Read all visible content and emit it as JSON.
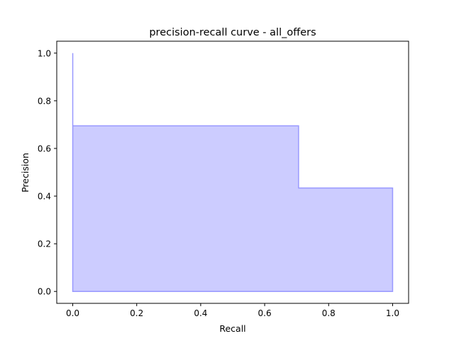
{
  "chart_data": {
    "type": "area",
    "title": "precision-recall curve - all_offers",
    "xlabel": "Recall",
    "ylabel": "Precision",
    "xlim": [
      -0.05,
      1.05
    ],
    "ylim": [
      -0.05,
      1.05
    ],
    "xticks": [
      0.0,
      0.2,
      0.4,
      0.6,
      0.8,
      1.0
    ],
    "xtick_labels": [
      "0.0",
      "0.2",
      "0.4",
      "0.6",
      "0.8",
      "1.0"
    ],
    "yticks": [
      0.0,
      0.2,
      0.4,
      0.6,
      0.8,
      1.0
    ],
    "ytick_labels": [
      "0.0",
      "0.2",
      "0.4",
      "0.6",
      "0.8",
      "1.0"
    ],
    "grid": false,
    "step": "post",
    "series": [
      {
        "x": [
          0.0,
          0.0,
          0.706,
          1.0
        ],
        "y": [
          1.0,
          0.695,
          0.434,
          0.434
        ],
        "color": "#0000ff",
        "fill_color": "#ccccff"
      }
    ]
  }
}
